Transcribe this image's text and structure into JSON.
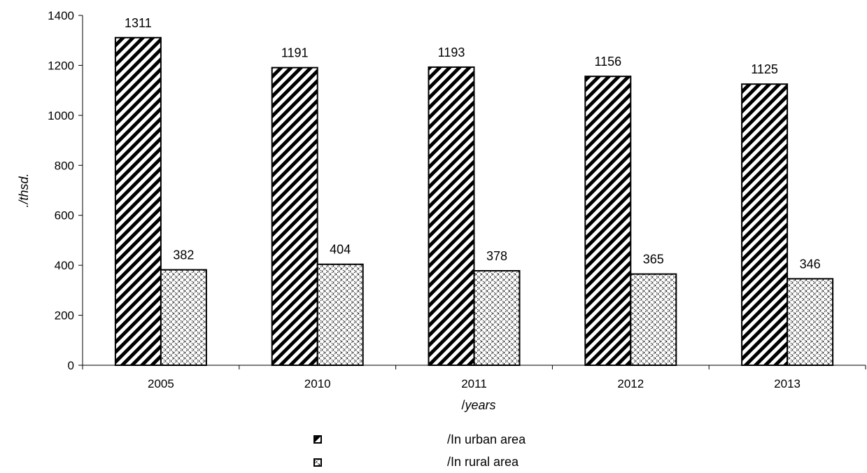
{
  "chart_data": {
    "type": "bar",
    "categories": [
      "2005",
      "2010",
      "2011",
      "2012",
      "2013"
    ],
    "series": [
      {
        "name": "/In urban area",
        "values": [
          1311,
          1191,
          1193,
          1156,
          1125
        ],
        "pattern": "diagonal-hatch"
      },
      {
        "name": "/In rural area",
        "values": [
          382,
          404,
          378,
          365,
          346
        ],
        "pattern": "dotted-crosshatch"
      }
    ],
    "yticks": [
      "0",
      "200",
      "400",
      "600",
      "800",
      "1000",
      "1200",
      "1400"
    ],
    "ylim": [
      0,
      1400
    ],
    "title": "",
    "xlabel_prefix": "/",
    "xlabel_italic": "years",
    "ylabel": "./thsd.",
    "legend_position": "bottom-center",
    "grid": false
  }
}
